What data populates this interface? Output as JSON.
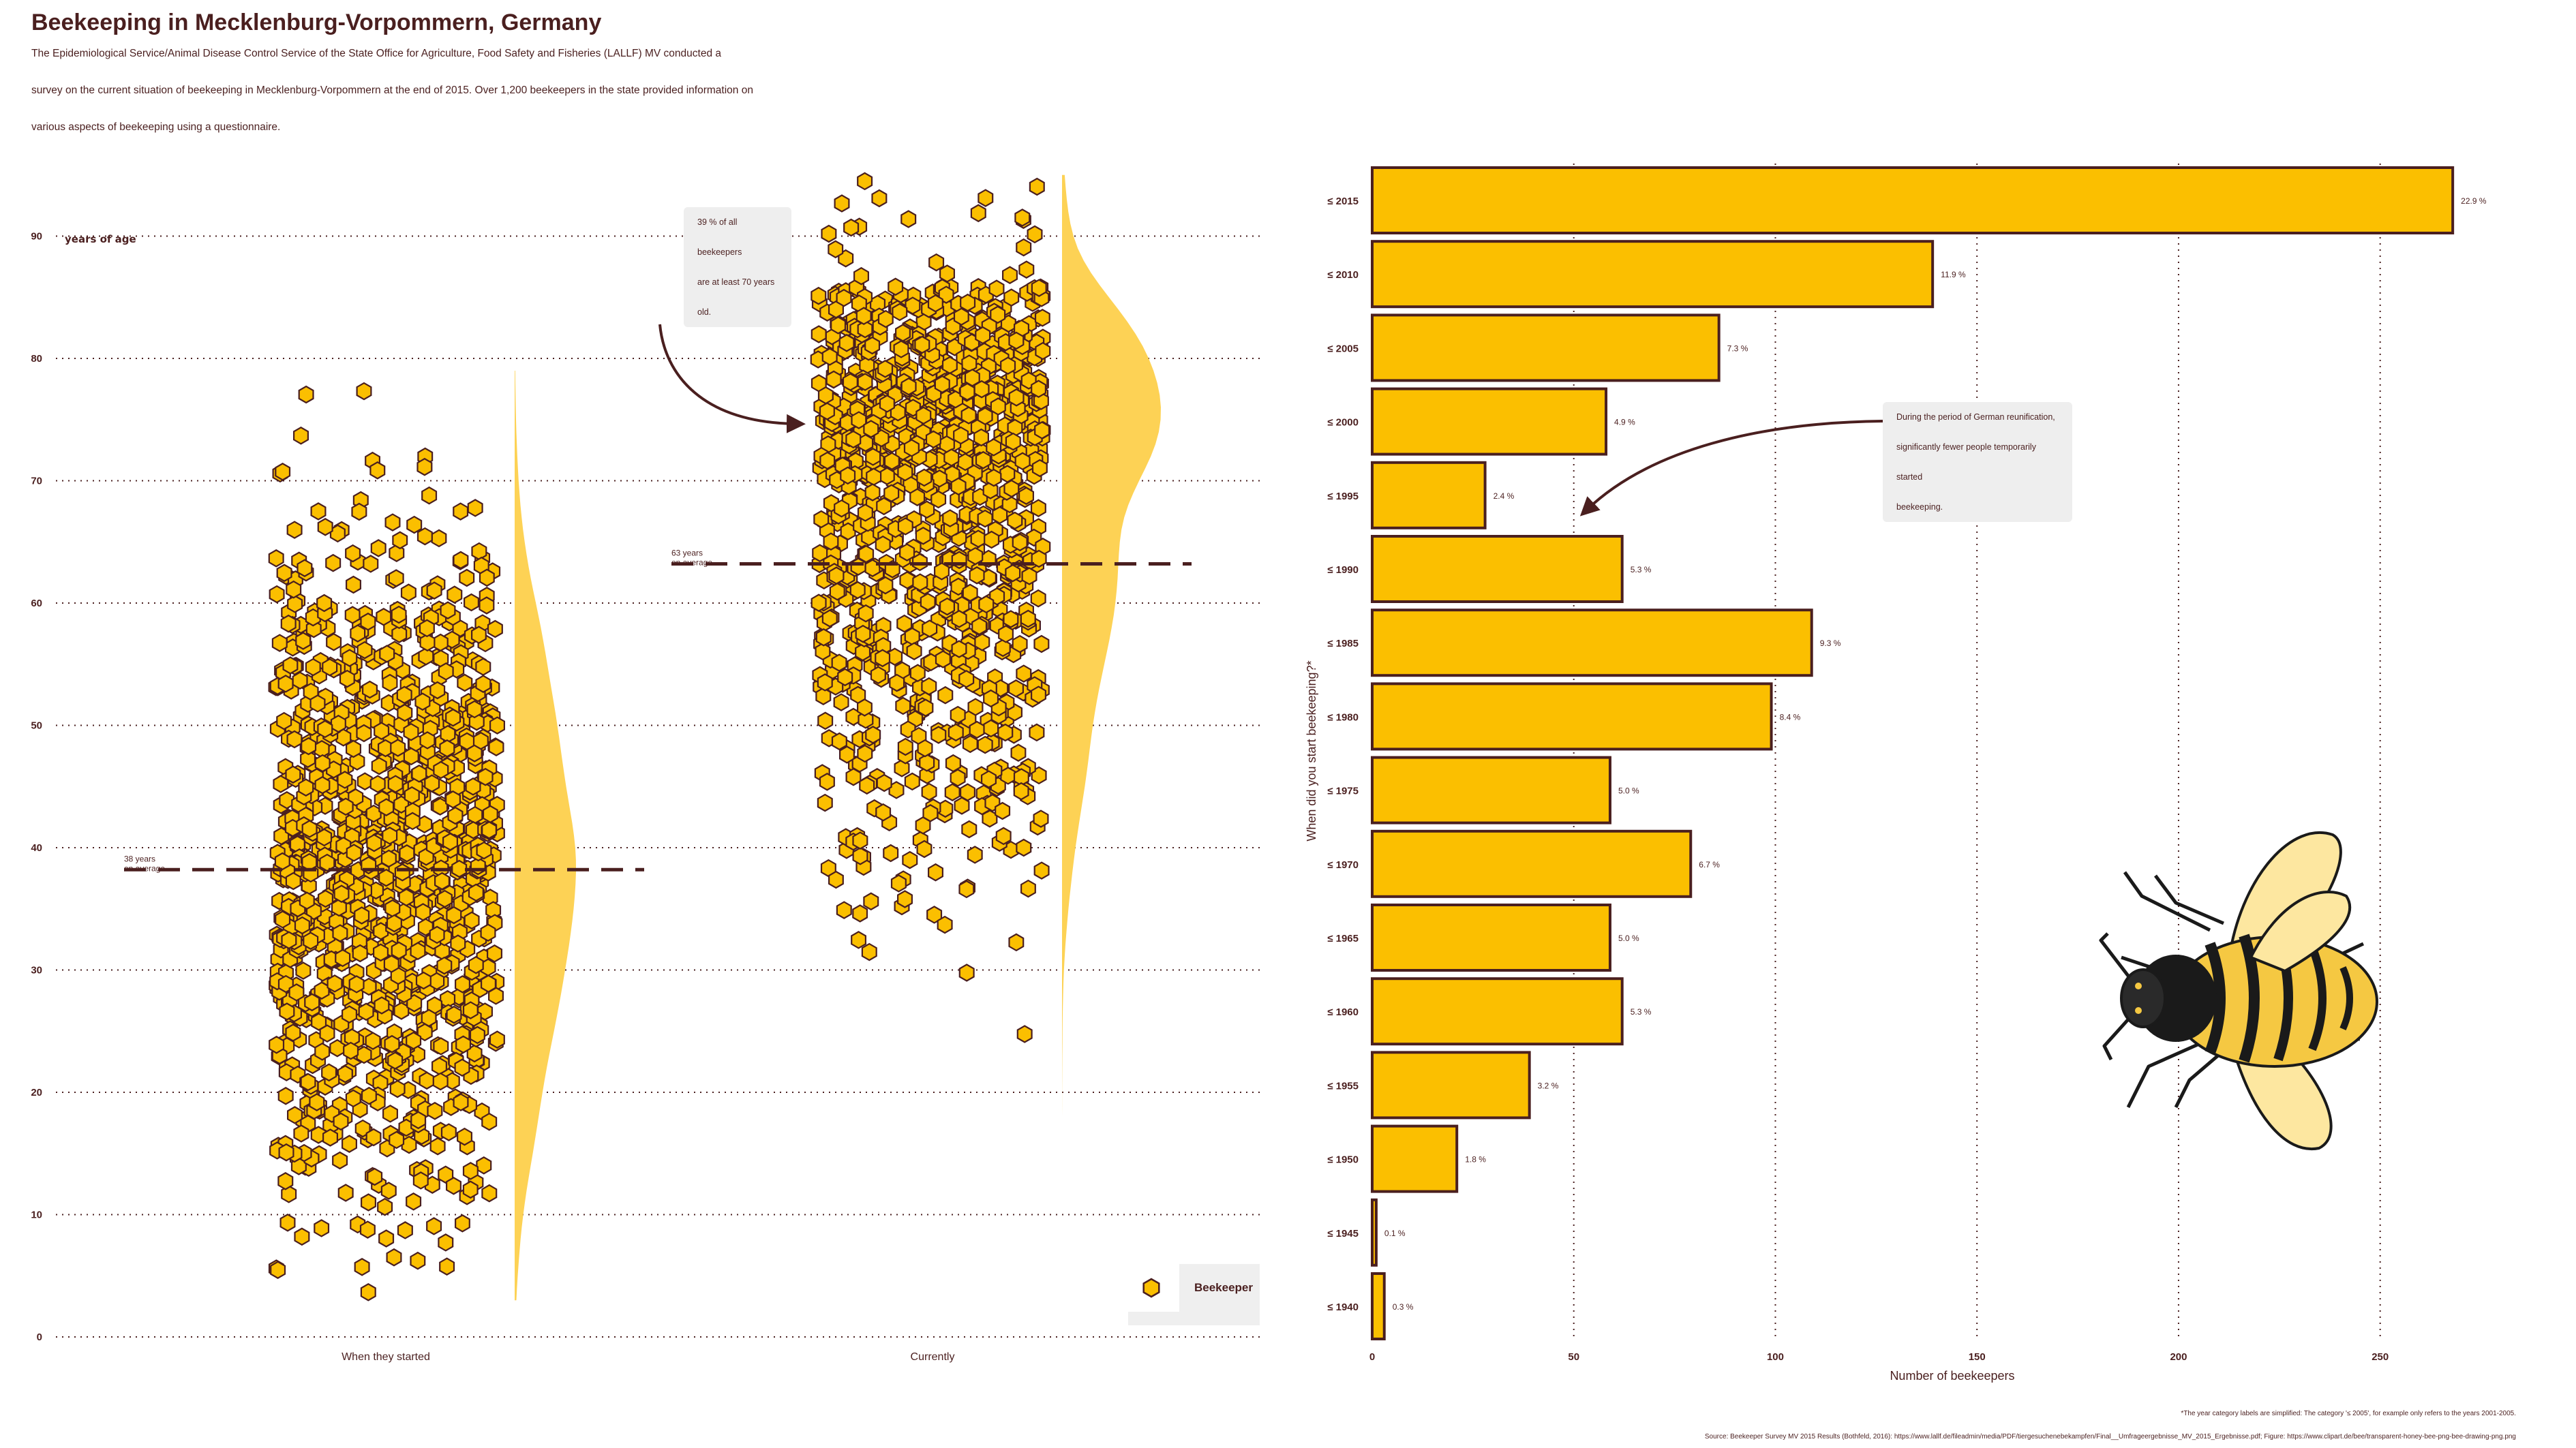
{
  "title": "Beekeeping in Mecklenburg-Vorpommern, Germany",
  "subtitle_lines": [
    "The Epidemiological Service/Animal Disease Control Service of the State Office for Agriculture, Food Safety and Fisheries (LALLF) MV conducted a",
    "survey on the current situation of beekeeping in Mecklenburg-Vorpommern at the end of 2015. Over 1,200 beekeepers in the state provided information on",
    "various aspects of beekeeping using a questionnaire."
  ],
  "colors": {
    "honey": "#fbbf00",
    "density": "#fdd255",
    "outline": "#4a1f1f",
    "grid": "#4a1f1f",
    "note_bg": "#eeeeee"
  },
  "chart_data": [
    {
      "type": "scatter",
      "ylabel": "years of age",
      "ylim": [
        0,
        90
      ],
      "yticks": [
        "0",
        "10",
        "20",
        "30",
        "40",
        "50",
        "60",
        "70",
        "80",
        "90"
      ],
      "categories": [
        "When they started",
        "Currently"
      ],
      "series": [
        {
          "name": "Beekeeper",
          "category": "When they started",
          "mean_label_lines": [
            "38 years",
            "on average"
          ],
          "mean": 38.2,
          "range": [
            3.5,
            78.7
          ]
        },
        {
          "name": "Beekeeper",
          "category": "Currently",
          "mean_label_lines": [
            "63 years",
            "on average"
          ],
          "mean": 63.2,
          "range": [
            13.2,
            94.7
          ]
        }
      ],
      "annotation_lines": [
        "39 % of all beekeepers",
        "are at least 70 years old."
      ],
      "legend": "Beekeeper"
    },
    {
      "type": "bar",
      "orientation": "horizontal",
      "ylabel": "When did you start beekeeping?*",
      "xlabel": "Number of beekeepers",
      "xlim": [
        0,
        270
      ],
      "xticks": [
        "0",
        "50",
        "100",
        "150",
        "200",
        "250"
      ],
      "categories": [
        "≤ 2015",
        "≤ 2010",
        "≤ 2005",
        "≤ 2000",
        "≤ 1995",
        "≤ 1990",
        "≤ 1985",
        "≤ 1980",
        "≤ 1975",
        "≤ 1970",
        "≤ 1965",
        "≤ 1960",
        "≤ 1955",
        "≤ 1950",
        "≤ 1945",
        "≤ 1940"
      ],
      "values": [
        268,
        139,
        86,
        58,
        28,
        62,
        109,
        99,
        59,
        79,
        59,
        62,
        39,
        21,
        1,
        3
      ],
      "labels": [
        "22.9 %",
        "11.9 %",
        "7.3 %",
        "4.9 %",
        "2.4 %",
        "5.3 %",
        "9.3 %",
        "8.4 %",
        "5.0 %",
        "6.7 %",
        "5.0 %",
        "5.3 %",
        "3.2 %",
        "1.8 %",
        "0.1 %",
        "0.3 %"
      ],
      "annotation_lines": [
        "During the period of German reunification,",
        "significantly fewer people temporarily started",
        "beekeeping."
      ]
    }
  ],
  "footnote": "*The year category labels are simplified: The category '≤ 2005', for example only refers to the years 2001-2005.",
  "source": "Source: Beekeeper Survey MV 2015 Results (Bothfeld, 2016): https://www.lallf.de/fileadmin/media/PDF/tiergesuchenebekampfen/Final__Umfrageergebnisse_MV_2015_Ergebnisse.pdf; Figure: https://www.clipart.de/bee/transparent-honey-bee-png-bee-drawing-png.png"
}
